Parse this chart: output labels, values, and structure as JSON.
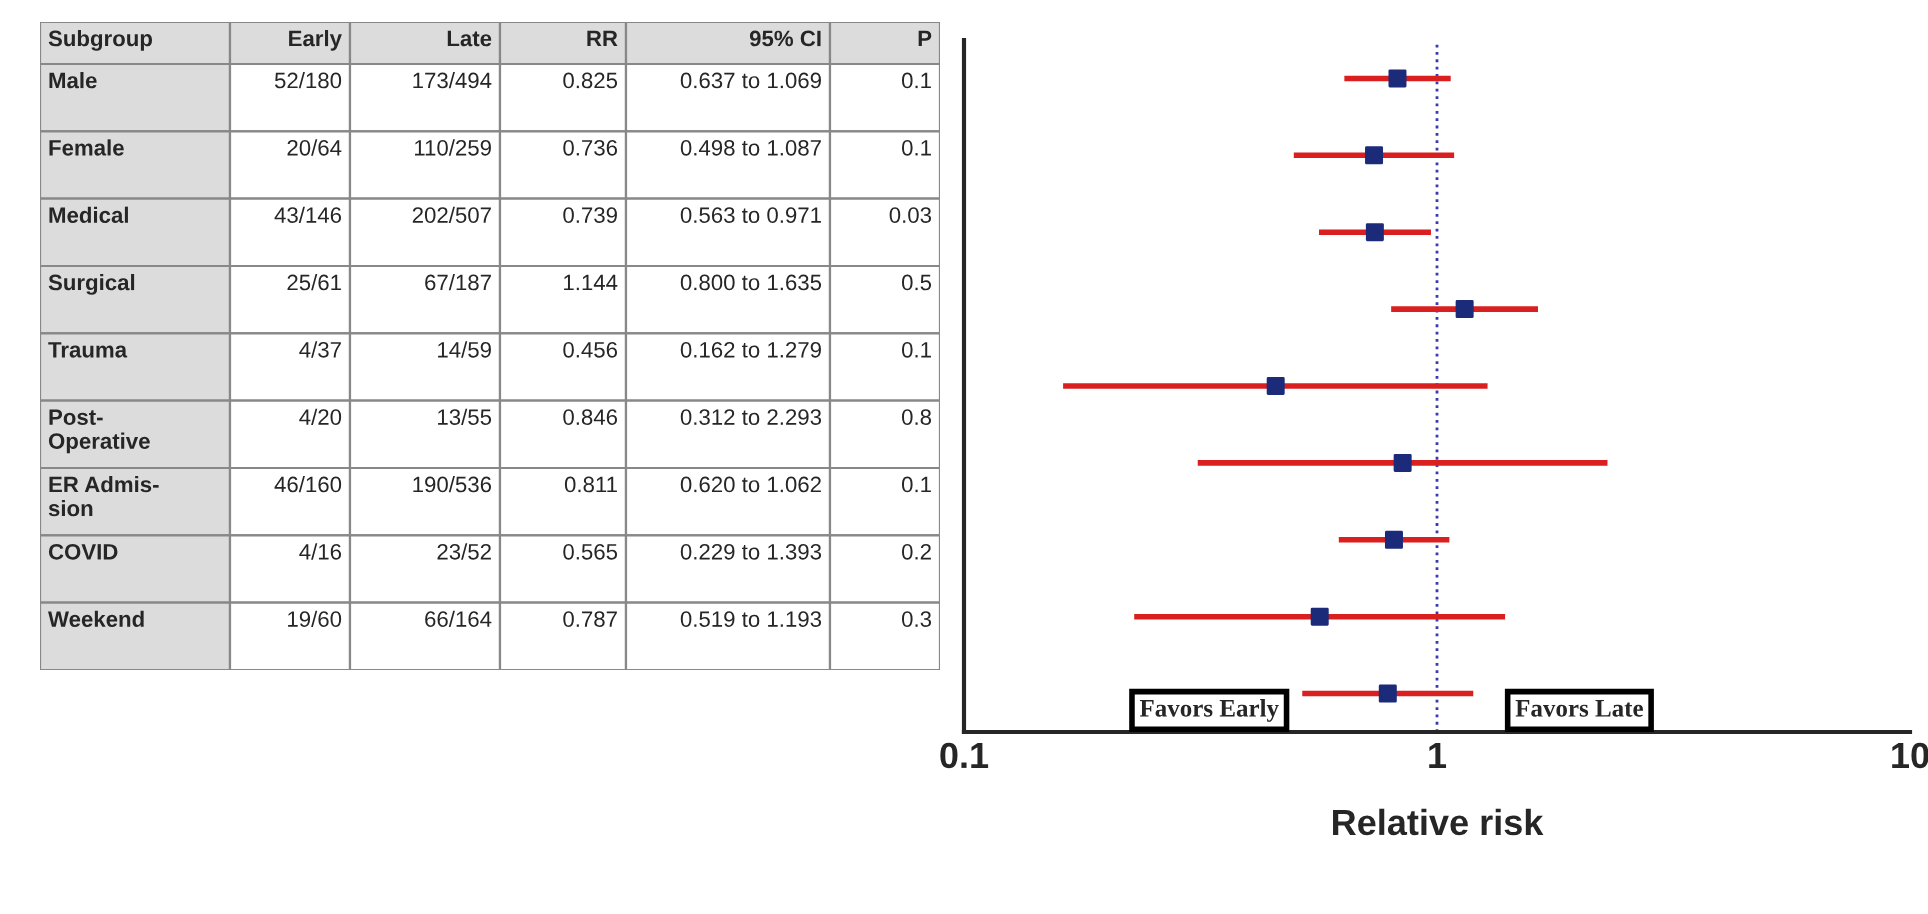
{
  "chart_data": [
    {
      "type": "other",
      "ylabel": "Subgroup",
      "categories": [
        "Early",
        "Late",
        "RR",
        "95% CI",
        "P"
      ],
      "y_categories": [
        "Male",
        "Female",
        "Medical",
        "Surgical",
        "Trauma",
        "Post-\nOperative",
        "ER Admis-\nsion",
        "COVID",
        "Weekend"
      ],
      "cell_labels": [
        [
          "52/180",
          "173/494",
          "0.825",
          "0.637 to 1.069",
          "0.1"
        ],
        [
          "20/64",
          "110/259",
          "0.736",
          "0.498 to 1.087",
          "0.1"
        ],
        [
          "43/146",
          "202/507",
          "0.739",
          "0.563 to 0.971",
          "0.03"
        ],
        [
          "25/61",
          "67/187",
          "1.144",
          "0.800 to 1.635",
          "0.5"
        ],
        [
          "4/37",
          "14/59",
          "0.456",
          "0.162 to 1.279",
          "0.1"
        ],
        [
          "4/20",
          "13/55",
          "0.846",
          "0.312 to 2.293",
          "0.8"
        ],
        [
          "46/160",
          "190/536",
          "0.811",
          "0.620 to 1.062",
          "0.1"
        ],
        [
          "4/16",
          "23/52",
          "0.565",
          "0.229 to 1.393",
          "0.2"
        ],
        [
          "19/60",
          "66/164",
          "0.787",
          "0.519 to 1.193",
          "0.3"
        ]
      ]
    },
    {
      "type": "scatter",
      "orientation": "horizontal",
      "categories": [
        null,
        null,
        null,
        null,
        null,
        null,
        null,
        null,
        null
      ],
      "series": [
        {
          "color": "#1c2a7a",
          "values": [
            0.825,
            0.736,
            0.739,
            1.144,
            0.456,
            0.846,
            0.811,
            0.565,
            0.787
          ],
          "errors": [
            [
              0.637,
              1.069
            ],
            [
              0.498,
              1.087
            ],
            [
              0.563,
              0.971
            ],
            [
              0.8,
              1.635
            ],
            [
              0.162,
              1.279
            ],
            [
              0.312,
              2.293
            ],
            [
              0.62,
              1.062
            ],
            [
              0.229,
              1.393
            ],
            [
              0.519,
              1.193
            ]
          ]
        }
      ],
      "log": "x",
      "xlim": [
        0.1,
        10
      ],
      "xticks": [
        0.1,
        1,
        10
      ],
      "xlabel": "Relative risk",
      "tick_labels": "x",
      "marker": "square",
      "grid": false,
      "legend": false,
      "ref_lines": [
        {
          "axis": "x",
          "value": 1,
          "color": "#3a3ab0",
          "line_style": "dotted"
        }
      ],
      "annotations": [
        "Favors Early",
        "Favors Late"
      ]
    }
  ]
}
